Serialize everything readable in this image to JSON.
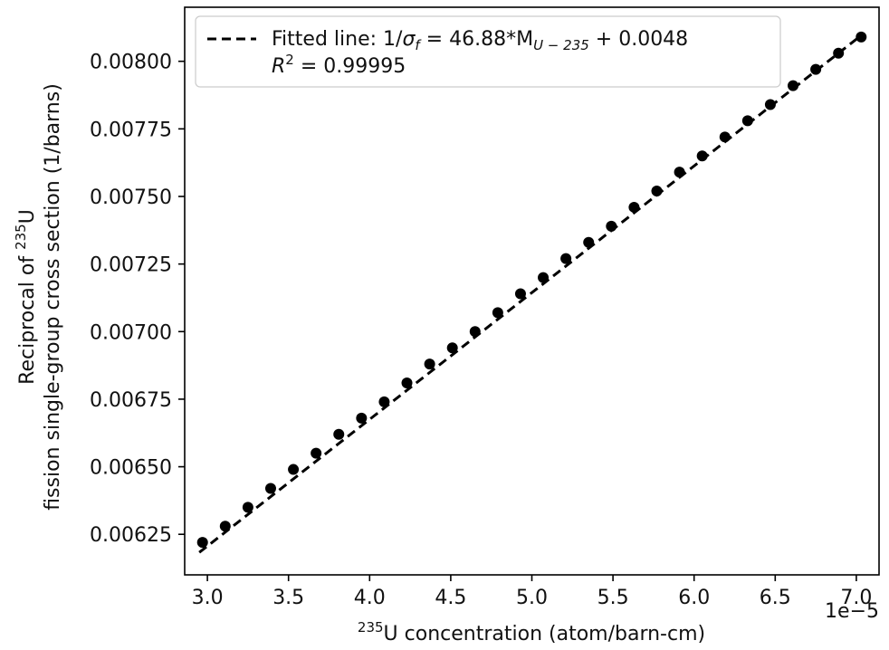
{
  "chart_data": {
    "type": "scatter",
    "x_axis": {
      "label_prefix": "235",
      "label": "U concentration (atom/barn-cm)",
      "multiplier_label": "1e−5",
      "xlim": [
        2.86,
        7.14
      ],
      "ticks": [
        "3.0",
        "3.5",
        "4.0",
        "4.5",
        "5.0",
        "5.5",
        "6.0",
        "6.5",
        "7.0"
      ],
      "tick_values": [
        3.0,
        3.5,
        4.0,
        4.5,
        5.0,
        5.5,
        6.0,
        6.5,
        7.0
      ]
    },
    "y_axis": {
      "label_line1_prefix": "Reciprocal of ",
      "label_line1_sup": "235",
      "label_line1_suffix": "U",
      "label_line2": "fission single-group cross section (1/barns)",
      "ylim": [
        0.0061,
        0.0082
      ],
      "ticks": [
        "0.00625",
        "0.00650",
        "0.00675",
        "0.00700",
        "0.00725",
        "0.00750",
        "0.00775",
        "0.00800"
      ],
      "tick_values": [
        0.00625,
        0.0065,
        0.00675,
        0.007,
        0.00725,
        0.0075,
        0.00775,
        0.008
      ]
    },
    "series": [
      {
        "x": [
          2.97,
          3.11,
          3.25,
          3.39,
          3.53,
          3.67,
          3.81,
          3.95,
          4.09,
          4.23,
          4.37,
          4.51,
          4.65,
          4.79,
          4.93,
          5.07,
          5.21,
          5.35,
          5.49,
          5.63,
          5.77,
          5.91,
          6.05,
          6.19,
          6.33,
          6.47,
          6.61,
          6.75,
          6.89,
          7.03
        ],
        "y": [
          0.00622,
          0.00628,
          0.00635,
          0.00642,
          0.00649,
          0.00655,
          0.00662,
          0.00668,
          0.00674,
          0.00681,
          0.00688,
          0.00694,
          0.007,
          0.00707,
          0.00714,
          0.0072,
          0.00727,
          0.00733,
          0.00739,
          0.00746,
          0.00752,
          0.00759,
          0.00765,
          0.00772,
          0.00778,
          0.00784,
          0.00791,
          0.00797,
          0.00803,
          0.00809
        ]
      }
    ],
    "fit_line": {
      "slope": 46.88,
      "intercept": 0.0048,
      "x_range": [
        2.95,
        7.04
      ],
      "style": "dashed"
    },
    "legend": {
      "position": "top-left",
      "line1_prefix": "Fitted line: 1/",
      "line1_sigma": "σ",
      "line1_sigma_sub": "f",
      "line1_mid": " = 46.88*M",
      "line1_sub": "U − 235",
      "line1_suffix": " + 0.0048",
      "line2_R": "R",
      "line2_sup": "2",
      "line2_rest": " = 0.99995"
    },
    "colors": {
      "marker": "#000000",
      "fit_line": "#000000",
      "frame": "#000000",
      "legend_border": "#cccccc"
    }
  }
}
